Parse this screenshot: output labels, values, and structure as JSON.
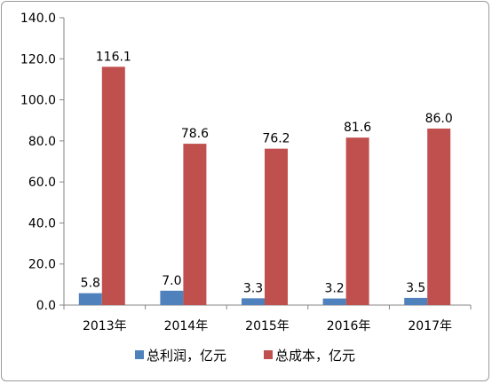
{
  "chart_data": {
    "type": "bar",
    "title": "",
    "xlabel": "",
    "ylabel": "",
    "categories": [
      "2013年",
      "2014年",
      "2015年",
      "2016年",
      "2017年"
    ],
    "series": [
      {
        "name": "总利润，亿元",
        "values": [
          5.8,
          7.0,
          3.3,
          3.2,
          3.5
        ],
        "color": "#4f81bd"
      },
      {
        "name": "总成本，亿元",
        "values": [
          116.1,
          78.6,
          76.2,
          81.6,
          86.0
        ],
        "color": "#c0504d"
      }
    ],
    "ylim": [
      0,
      140
    ],
    "yticks": [
      "0.0",
      "20.0",
      "40.0",
      "60.0",
      "80.0",
      "100.0",
      "120.0",
      "140.0"
    ],
    "data_labels": [
      [
        "5.8",
        "7.0",
        "3.3",
        "3.2",
        "3.5"
      ],
      [
        "116.1",
        "78.6",
        "76.2",
        "81.6",
        "86.0"
      ]
    ],
    "grid": false,
    "legend_position": "bottom"
  }
}
